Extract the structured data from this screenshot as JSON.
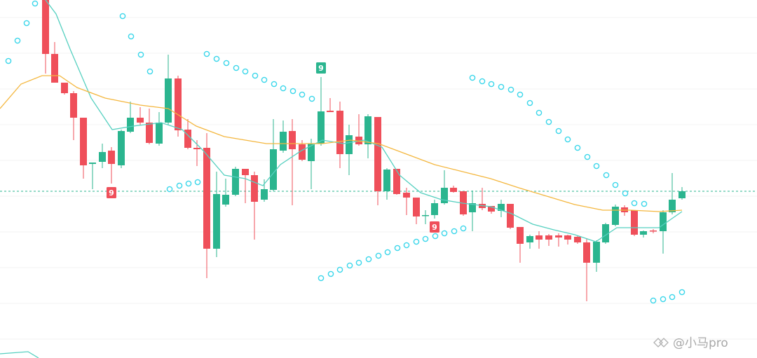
{
  "chart_data": {
    "type": "candlestick",
    "xlim": [
      0,
      1080
    ],
    "ylim": [
      0,
      511
    ],
    "grid": true,
    "yticks": [
      27,
      78,
      129,
      180,
      231,
      282,
      333,
      384,
      435,
      486
    ],
    "up_color": "#2bb58f",
    "down_color": "#ef4f5a",
    "candles": {
      "x": [
        65,
        78,
        92,
        105,
        119,
        132,
        146,
        159,
        173,
        186,
        200,
        213,
        227,
        240,
        254,
        268,
        281,
        295,
        309,
        322,
        336,
        350,
        363,
        377,
        390,
        404,
        417,
        431,
        444,
        458,
        471,
        485,
        498,
        512,
        525,
        539,
        552,
        566,
        580,
        594,
        607,
        620,
        634,
        647,
        661,
        674,
        688,
        701,
        715,
        728,
        742,
        756,
        769,
        783,
        797,
        810,
        824,
        837,
        851,
        864,
        878,
        891,
        905,
        918,
        932,
        946,
        959,
        973
      ],
      "open": [
        511,
        434,
        393,
        378,
        343,
        277,
        280,
        296,
        275,
        323,
        343,
        336,
        306,
        336,
        399,
        326,
        300,
        300,
        156,
        219,
        233,
        270,
        261,
        226,
        240,
        296,
        324,
        305,
        281,
        306,
        353,
        353,
        291,
        316,
        305,
        344,
        238,
        270,
        236,
        229,
        203,
        204,
        221,
        243,
        238,
        208,
        220,
        217,
        210,
        220,
        187,
        165,
        175,
        175,
        175,
        175,
        173,
        165,
        136,
        165,
        190,
        215,
        211,
        176,
        182,
        181,
        208,
        228
      ],
      "high": [
        511,
        451,
        393,
        381,
        343,
        279,
        306,
        301,
        326,
        366,
        358,
        356,
        351,
        433,
        403,
        341,
        311,
        321,
        266,
        256,
        273,
        270,
        266,
        255,
        341,
        339,
        341,
        311,
        313,
        401,
        371,
        366,
        333,
        348,
        348,
        344,
        271,
        270,
        243,
        229,
        211,
        226,
        268,
        246,
        238,
        239,
        243,
        217,
        226,
        220,
        187,
        176,
        181,
        177,
        178,
        176,
        174,
        171,
        168,
        193,
        219,
        218,
        211,
        182,
        184,
        211,
        264,
        244
      ],
      "low": [
        406,
        393,
        376,
        311,
        256,
        241,
        271,
        249,
        271,
        321,
        333,
        305,
        303,
        333,
        316,
        298,
        274,
        114,
        144,
        216,
        231,
        221,
        169,
        223,
        238,
        293,
        218,
        281,
        241,
        303,
        351,
        271,
        261,
        303,
        285,
        218,
        226,
        233,
        204,
        191,
        191,
        199,
        219,
        236,
        203,
        181,
        211,
        206,
        201,
        184,
        136,
        156,
        156,
        160,
        159,
        162,
        163,
        81,
        123,
        163,
        188,
        203,
        174,
        172,
        178,
        149,
        205,
        226
      ],
      "close": [
        434,
        393,
        378,
        343,
        275,
        279,
        294,
        277,
        324,
        343,
        336,
        307,
        336,
        399,
        325,
        300,
        298,
        156,
        234,
        233,
        270,
        261,
        223,
        241,
        298,
        323,
        298,
        283,
        306,
        352,
        351,
        291,
        318,
        305,
        345,
        238,
        269,
        234,
        229,
        202,
        204,
        221,
        243,
        237,
        205,
        221,
        214,
        209,
        220,
        186,
        163,
        174,
        169,
        169,
        172,
        169,
        165,
        136,
        166,
        191,
        216,
        208,
        176,
        181,
        181,
        208,
        226,
        238
      ]
    },
    "lines": [
      {
        "color": "#56d0c0",
        "x": [
          65,
          80,
          100,
          130,
          160,
          190,
          230,
          260,
          290,
          320,
          350,
          375,
          400,
          430,
          460,
          490,
          520,
          545,
          570,
          600,
          630,
          660,
          700,
          730,
          760,
          790,
          820,
          850,
          880,
          910,
          940,
          973
        ],
        "values": [
          511,
          491,
          441,
          371,
          326,
          331,
          336,
          326,
          296,
          261,
          256,
          246,
          276,
          296,
          311,
          306,
          311,
          301,
          261,
          236,
          226,
          221,
          216,
          206,
          191,
          183,
          176,
          166,
          186,
          186,
          186,
          209
        ]
      },
      {
        "color": "#f4b73f",
        "x": [
          0,
          30,
          60,
          85,
          110,
          150,
          200,
          240,
          280,
          320,
          380,
          420,
          460,
          500,
          540,
          580,
          620,
          660,
          700,
          740,
          780,
          820,
          860,
          900,
          940,
          973
        ],
        "values": [
          356,
          391,
          403,
          403,
          386,
          371,
          361,
          356,
          331,
          316,
          306,
          306,
          306,
          311,
          306,
          291,
          276,
          266,
          256,
          243,
          231,
          219,
          211,
          211,
          209,
          211
        ]
      },
      {
        "color": "#56d0c0",
        "x": [
          0,
          40,
          55
        ],
        "values": [
          6,
          9,
          0
        ]
      }
    ],
    "sar": {
      "color": "#3ad6ea",
      "x": [
        12,
        25,
        38,
        50,
        175,
        187,
        201,
        214,
        295,
        309,
        323,
        337,
        350,
        364,
        377,
        391,
        404,
        418,
        431,
        445,
        242,
        256,
        269,
        282,
        458,
        472,
        485,
        499,
        512,
        526,
        540,
        553,
        567,
        580,
        594,
        607,
        621,
        634,
        648,
        661,
        674,
        688,
        701,
        715,
        729,
        742,
        756,
        769,
        783,
        797,
        810,
        824,
        838,
        851,
        865,
        878,
        892,
        905,
        919,
        932,
        946,
        959,
        973
      ],
      "values": [
        424,
        453,
        478,
        506,
        488,
        459,
        433,
        409,
        434,
        427,
        421,
        414,
        409,
        403,
        397,
        391,
        385,
        381,
        376,
        370,
        241,
        246,
        249,
        251,
        114,
        120,
        126,
        132,
        136,
        141,
        146,
        151,
        157,
        161,
        166,
        170,
        174,
        178,
        181,
        185,
        400,
        395,
        391,
        387,
        383,
        376,
        364,
        350,
        337,
        324,
        312,
        300,
        287,
        274,
        261,
        247,
        235,
        221,
        220,
        82,
        84,
        87,
        94
      ]
    },
    "last_price": 238,
    "last_price_color": "#2bb58f",
    "annotations": [
      {
        "text": "9",
        "x": 159,
        "y": 236,
        "color": "#ef4f5a"
      },
      {
        "text": "9",
        "x": 458,
        "y": 414,
        "color": "#2bb58f"
      },
      {
        "text": "9",
        "x": 620,
        "y": 187,
        "color": "#ef4f5a"
      }
    ],
    "watermark": "@小马pro"
  }
}
